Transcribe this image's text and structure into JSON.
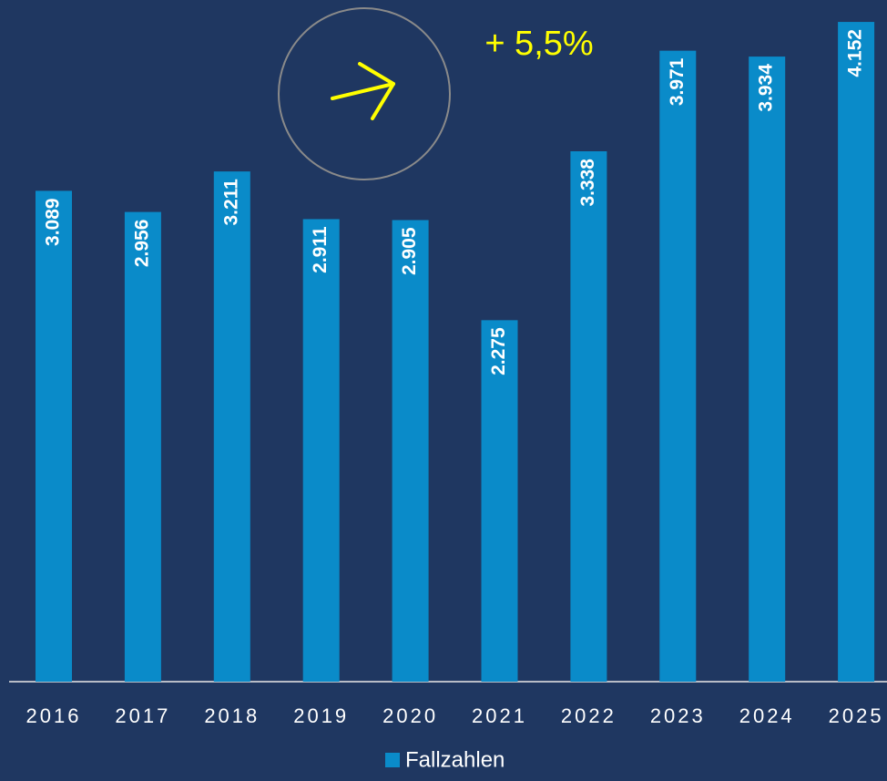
{
  "chart_data": {
    "type": "bar",
    "categories": [
      "2016",
      "2017",
      "2018",
      "2019",
      "2020",
      "2021",
      "2022",
      "2023",
      "2024",
      "2025"
    ],
    "series": [
      {
        "name": "Fallzahlen",
        "color": "#0a8bc9",
        "values": [
          3089,
          2956,
          3211,
          2911,
          2905,
          2275,
          3338,
          3971,
          3934,
          4152
        ],
        "value_labels": [
          "3.089",
          "2.956",
          "3.211",
          "2.911",
          "2.905",
          "2.275",
          "3.338",
          "3.971",
          "3.934",
          "4.152"
        ]
      }
    ],
    "ylim": [
      0,
      4290
    ],
    "annotation": "+ 5,5%",
    "legend": "bottom"
  }
}
